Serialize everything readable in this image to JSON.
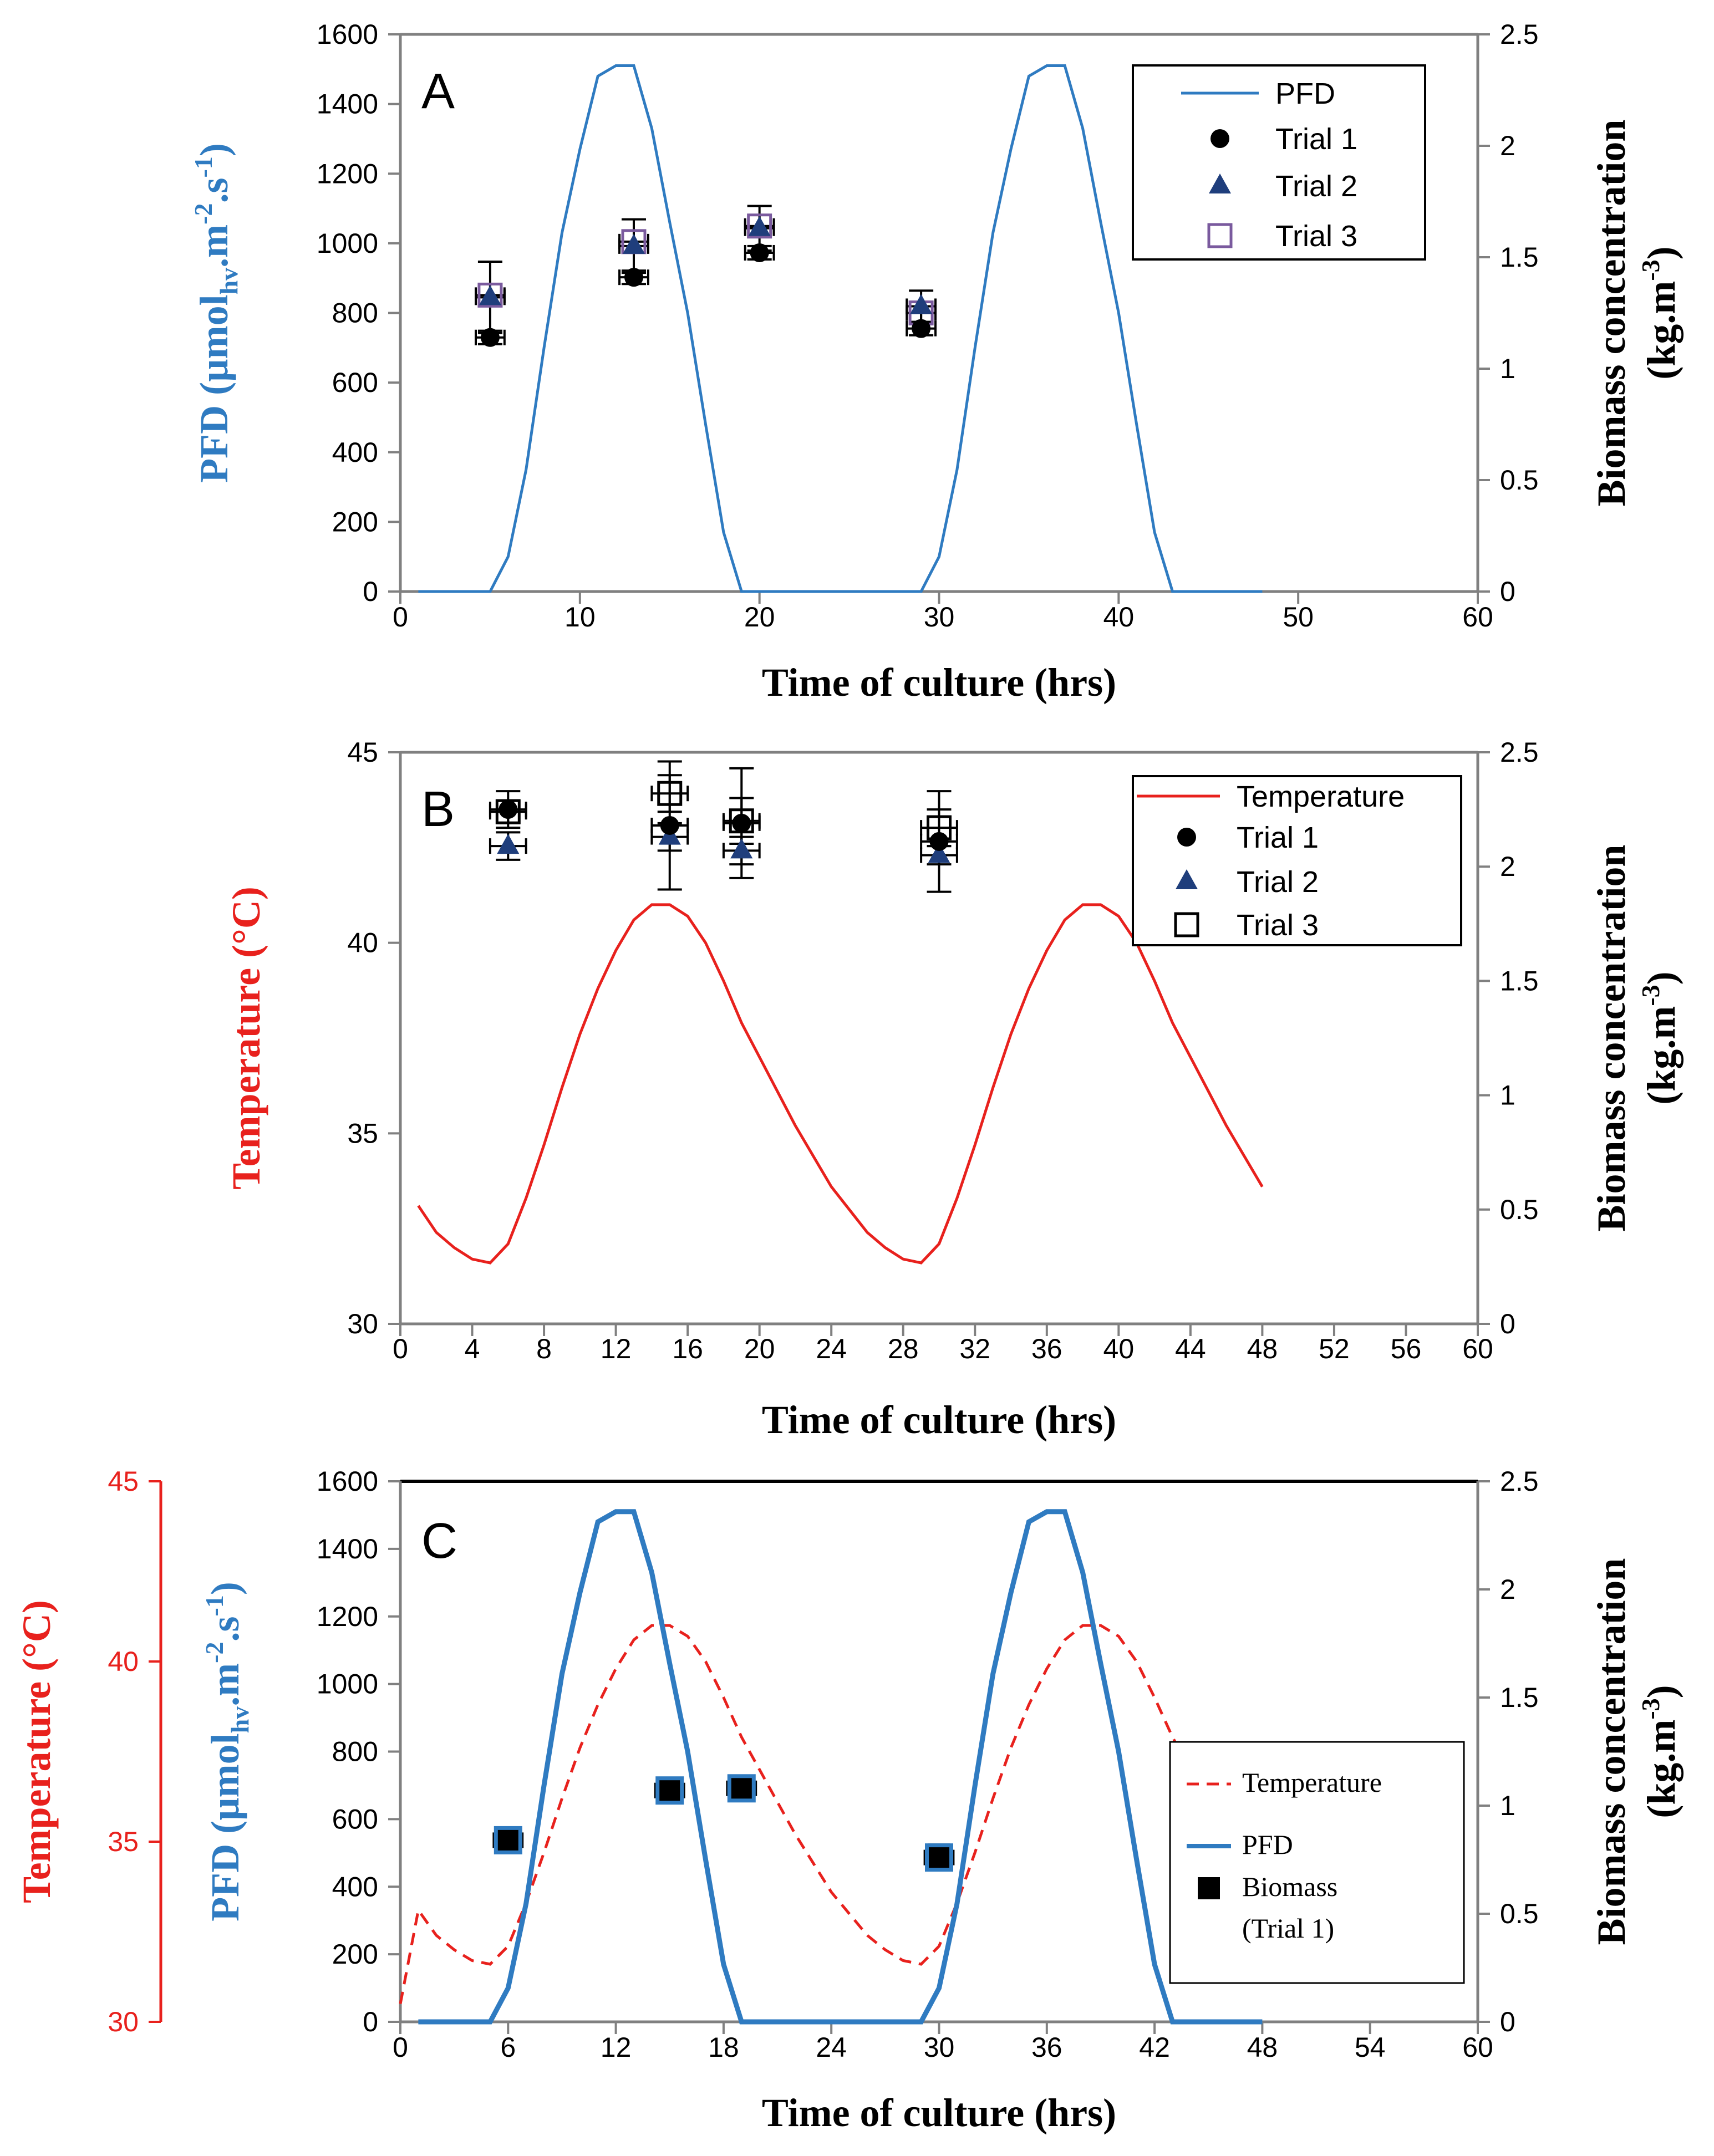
{
  "chart_data": [
    {
      "panel": "A",
      "type": "line",
      "xlabel": "Time of culture (hrs)",
      "ylabel": "PFD (µmol",
      "ylabel_sub": "hv",
      "ylabel_mid": ".m",
      "ylabel_sup1": "-2",
      "ylabel_mid2": ".s",
      "ylabel_sup2": "-1",
      "ylabel_end": ")",
      "y2label": "Biomass concentration",
      "y2label_line2": "(kg.m",
      "y2label_sup": "-3",
      "y2label_end": ")",
      "xlim": [
        0,
        60
      ],
      "xticks": [
        "0",
        "10",
        "20",
        "30",
        "40",
        "50",
        "60"
      ],
      "ylim": [
        0,
        1600
      ],
      "yticks": [
        "0",
        "200",
        "400",
        "600",
        "800",
        "1000",
        "1200",
        "1400",
        "1600"
      ],
      "y2lim": [
        0,
        2.5
      ],
      "y2ticks": [
        "0",
        "0.5",
        "1",
        "1.5",
        "2",
        "2.5"
      ],
      "legend": [
        "PFD",
        "Trial 1",
        "Trial 2",
        "Trial 3"
      ],
      "series": [
        {
          "name": "PFD",
          "axis": "left",
          "color": "#2f7bc1",
          "x": [
            1,
            2,
            3,
            4,
            5,
            6,
            7,
            8,
            9,
            10,
            11,
            12,
            13,
            14,
            15,
            16,
            17,
            18,
            19,
            20,
            21,
            22,
            23,
            24,
            25,
            26,
            27,
            28,
            29,
            30,
            31,
            32,
            33,
            34,
            35,
            36,
            37,
            38,
            39,
            40,
            41,
            42,
            43,
            44,
            45,
            46,
            47,
            48
          ],
          "y": [
            0,
            0,
            0,
            0,
            0,
            100,
            350,
            700,
            1030,
            1270,
            1480,
            1510,
            1510,
            1330,
            1060,
            800,
            480,
            170,
            0,
            0,
            0,
            0,
            0,
            0,
            0,
            0,
            0,
            0,
            0,
            100,
            350,
            700,
            1030,
            1270,
            1480,
            1510,
            1510,
            1330,
            1060,
            800,
            480,
            170,
            0,
            0,
            0,
            0,
            0,
            0
          ]
        },
        {
          "name": "Trial 1",
          "axis": "right",
          "x": [
            5,
            13,
            20,
            29
          ],
          "y": [
            1.14,
            1.41,
            1.52,
            1.18
          ],
          "xerr": 0.8,
          "yerr": [
            0.03,
            0.03,
            0.03,
            0.03
          ]
        },
        {
          "name": "Trial 2",
          "axis": "right",
          "x": [
            5,
            13,
            20,
            29
          ],
          "y": [
            1.32,
            1.55,
            1.63,
            1.28
          ],
          "xerr": 0.8,
          "yerr": [
            0.16,
            0.12,
            0.1,
            0.07
          ]
        },
        {
          "name": "Trial 3",
          "axis": "right",
          "x": [
            5,
            13,
            20,
            29
          ],
          "y": [
            1.33,
            1.57,
            1.64,
            1.25
          ],
          "xerr": 0.8,
          "yerr": [
            0.05,
            0.05,
            0.05,
            0.05
          ]
        }
      ]
    },
    {
      "panel": "B",
      "type": "line",
      "xlabel": "Time of culture (hrs)",
      "ylabel": "Temperature (°C)",
      "y2label": "Biomass concentration",
      "y2label_line2": "(kg.m",
      "y2label_sup": "-3",
      "y2label_end": ")",
      "xlim": [
        0,
        60
      ],
      "xticks": [
        "0",
        "4",
        "8",
        "12",
        "16",
        "20",
        "24",
        "28",
        "32",
        "36",
        "40",
        "44",
        "48",
        "52",
        "56",
        "60"
      ],
      "ylim": [
        30,
        45
      ],
      "yticks": [
        "30",
        "35",
        "40",
        "45"
      ],
      "y2lim": [
        0,
        2.5
      ],
      "y2ticks": [
        "0",
        "0.5",
        "1",
        "1.5",
        "2",
        "2.5"
      ],
      "legend": [
        "Temperature",
        "Trial 1",
        "Trial 2",
        "Trial 3"
      ],
      "series": [
        {
          "name": "Temperature",
          "axis": "left",
          "color": "#e8211d",
          "x": [
            1,
            2,
            3,
            4,
            5,
            6,
            7,
            8,
            9,
            10,
            11,
            12,
            13,
            14,
            15,
            16,
            17,
            18,
            19,
            20,
            21,
            22,
            23,
            24,
            25,
            26,
            27,
            28,
            29,
            30,
            31,
            32,
            33,
            34,
            35,
            36,
            37,
            38,
            39,
            40,
            41,
            42,
            43,
            44,
            45,
            46,
            47,
            48
          ],
          "y": [
            33.1,
            32.4,
            32.0,
            31.7,
            31.6,
            32.1,
            33.3,
            34.7,
            36.2,
            37.6,
            38.8,
            39.8,
            40.6,
            41.0,
            41.0,
            40.7,
            40.0,
            39.0,
            37.9,
            37.0,
            36.1,
            35.2,
            34.4,
            33.6,
            33.0,
            32.4,
            32.0,
            31.7,
            31.6,
            32.1,
            33.3,
            34.7,
            36.2,
            37.6,
            38.8,
            39.8,
            40.6,
            41.0,
            41.0,
            40.7,
            40.0,
            39.0,
            37.9,
            37.0,
            36.1,
            35.2,
            34.4,
            33.6
          ]
        },
        {
          "name": "Trial 1",
          "axis": "right",
          "x": [
            6,
            15,
            19,
            30
          ],
          "y": [
            2.25,
            2.18,
            2.19,
            2.11
          ],
          "xerr": 1.0,
          "yerr": [
            0.08,
            0.28,
            0.24,
            0.22
          ]
        },
        {
          "name": "Trial 2",
          "axis": "right",
          "x": [
            6,
            15,
            19,
            30
          ],
          "y": [
            2.09,
            2.13,
            2.07,
            2.05
          ],
          "xerr": 1.0,
          "yerr": [
            0.06,
            0.06,
            0.06,
            0.04
          ]
        },
        {
          "name": "Trial 3",
          "axis": "right",
          "x": [
            6,
            15,
            19,
            30
          ],
          "y": [
            2.24,
            2.32,
            2.2,
            2.17
          ],
          "xerr": 1.0,
          "yerr": [
            0.05,
            0.08,
            0.1,
            0.08
          ]
        }
      ]
    },
    {
      "panel": "C",
      "type": "line",
      "xlabel": "Time of culture (hrs)",
      "ylabel": "PFD (µmol",
      "ylabel_sub": "hv",
      "ylabel_mid": ".m",
      "ylabel_sup1": "-2",
      "ylabel_mid2": ".s",
      "ylabel_sup2": "-1",
      "ylabel_end": ")",
      "y3label": "Temperature (°C)",
      "y2label": "Biomass concentration",
      "y2label_line2": "(kg.m",
      "y2label_sup": "-3",
      "y2label_end": ")",
      "xlim": [
        0,
        60
      ],
      "xticks": [
        "0",
        "6",
        "12",
        "18",
        "24",
        "30",
        "36",
        "42",
        "48",
        "54",
        "60"
      ],
      "ylim": [
        0,
        1600
      ],
      "yticks": [
        "0",
        "200",
        "400",
        "600",
        "800",
        "1000",
        "1200",
        "1400",
        "1600"
      ],
      "y2lim": [
        0,
        2.5
      ],
      "y2ticks": [
        "0",
        "0.5",
        "1",
        "1.5",
        "2",
        "2.5"
      ],
      "y3lim": [
        30,
        45
      ],
      "y3ticks": [
        "30",
        "35",
        "40",
        "45"
      ],
      "legend": [
        "Temperature",
        "PFD",
        "Biomass",
        "(Trial 1)"
      ],
      "series": [
        {
          "name": "PFD",
          "axis": "left",
          "color": "#2f7bc1",
          "x": [
            1,
            2,
            3,
            4,
            5,
            6,
            7,
            8,
            9,
            10,
            11,
            12,
            13,
            14,
            15,
            16,
            17,
            18,
            19,
            20,
            21,
            22,
            23,
            24,
            25,
            26,
            27,
            28,
            29,
            30,
            31,
            32,
            33,
            34,
            35,
            36,
            37,
            38,
            39,
            40,
            41,
            42,
            43,
            44,
            45,
            46,
            47,
            48
          ],
          "y": [
            0,
            0,
            0,
            0,
            0,
            100,
            350,
            700,
            1030,
            1270,
            1480,
            1510,
            1510,
            1330,
            1060,
            800,
            480,
            170,
            0,
            0,
            0,
            0,
            0,
            0,
            0,
            0,
            0,
            0,
            0,
            100,
            350,
            700,
            1030,
            1270,
            1480,
            1510,
            1510,
            1330,
            1060,
            800,
            480,
            170,
            0,
            0,
            0,
            0,
            0,
            0
          ]
        },
        {
          "name": "Temperature",
          "axis": "temp",
          "color": "#e8211d",
          "x": [
            0,
            1,
            2,
            3,
            4,
            5,
            6,
            7,
            8,
            9,
            10,
            11,
            12,
            13,
            14,
            15,
            16,
            17,
            18,
            19,
            20,
            21,
            22,
            23,
            24,
            25,
            26,
            27,
            28,
            29,
            30,
            31,
            32,
            33,
            34,
            35,
            36,
            37,
            38,
            39,
            40,
            41,
            42,
            43,
            44,
            45
          ],
          "y": [
            30.5,
            33.1,
            32.4,
            32.0,
            31.7,
            31.6,
            32.1,
            33.3,
            34.7,
            36.2,
            37.6,
            38.8,
            39.8,
            40.6,
            41.0,
            41.0,
            40.7,
            40.0,
            39.0,
            37.9,
            37.0,
            36.1,
            35.2,
            34.4,
            33.6,
            33.0,
            32.4,
            32.0,
            31.7,
            31.6,
            32.1,
            33.3,
            34.7,
            36.2,
            37.6,
            38.8,
            39.8,
            40.6,
            41.0,
            41.0,
            40.7,
            40.0,
            39.0,
            37.9,
            37.0,
            36.1
          ]
        },
        {
          "name": "Biomass",
          "axis": "right",
          "x": [
            6,
            15,
            19,
            30
          ],
          "y": [
            0.84,
            1.07,
            1.08,
            0.76
          ],
          "xerr": 0.8,
          "yerr": [
            0.02,
            0.03,
            0.03,
            0.06
          ]
        }
      ]
    }
  ]
}
